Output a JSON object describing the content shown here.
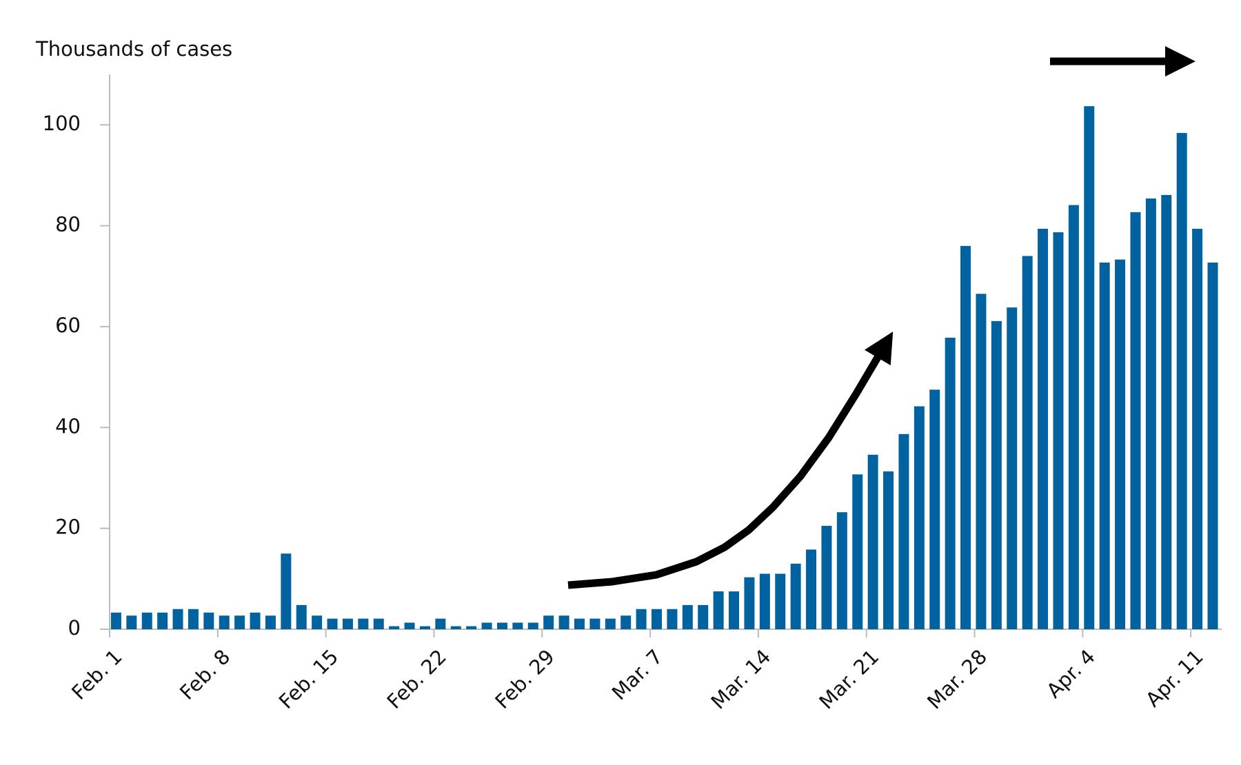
{
  "chart_data": {
    "type": "bar",
    "y_label": "Thousands of cases",
    "categories": [
      "Feb. 1",
      null,
      null,
      null,
      null,
      null,
      null,
      "Feb. 8",
      null,
      null,
      null,
      null,
      null,
      null,
      "Feb. 15",
      null,
      null,
      null,
      null,
      null,
      null,
      "Feb. 22",
      null,
      null,
      null,
      null,
      null,
      null,
      "Feb. 29",
      null,
      null,
      null,
      null,
      null,
      null,
      "Mar. 7",
      null,
      null,
      null,
      null,
      null,
      null,
      "Mar. 14",
      null,
      null,
      null,
      null,
      null,
      null,
      "Mar. 21",
      null,
      null,
      null,
      null,
      null,
      null,
      "Mar. 28",
      null,
      null,
      null,
      null,
      null,
      null,
      "Apr. 4",
      null,
      null,
      null,
      null,
      null,
      null,
      "Apr. 11",
      null
    ],
    "values": [
      3.3,
      2.7,
      3.3,
      3.3,
      4.0,
      4.0,
      3.3,
      2.7,
      2.7,
      3.3,
      2.7,
      15,
      4.8,
      2.7,
      2.1,
      2.1,
      2.1,
      2.1,
      0.6,
      1.3,
      0.6,
      2.1,
      0.6,
      0.6,
      1.3,
      1.3,
      1.3,
      1.3,
      2.7,
      2.7,
      2.1,
      2.1,
      2.1,
      2.7,
      4.0,
      4.0,
      4.0,
      4.8,
      4.8,
      7.5,
      7.5,
      10.3,
      11,
      11,
      13,
      15.8,
      20.5,
      23.2,
      30.7,
      34.6,
      31.3,
      38.7,
      44.2,
      47.5,
      57.8,
      76,
      66.5,
      61.1,
      63.8,
      74,
      79.4,
      78.7,
      84.1,
      103.7,
      72.7,
      73.3,
      82.7,
      85.4,
      86.1,
      98.4,
      79.4,
      72.7
    ],
    "color": "#00639f",
    "ylim": [
      0,
      110
    ],
    "yticks": [
      0,
      20,
      40,
      60,
      80,
      100
    ],
    "grid": false
  }
}
